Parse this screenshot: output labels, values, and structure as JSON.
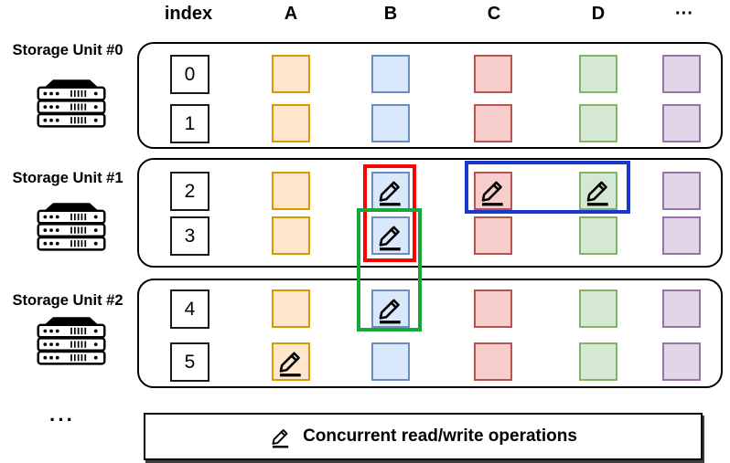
{
  "header": {
    "index": "index",
    "columns": [
      "A",
      "B",
      "C",
      "D",
      "···"
    ]
  },
  "columns": [
    {
      "label": "A",
      "fill": "#ffe6cc",
      "border": "#d79b00"
    },
    {
      "label": "B",
      "fill": "#dae8fc",
      "border": "#6c8ebf"
    },
    {
      "label": "C",
      "fill": "#f8cecc",
      "border": "#b85450"
    },
    {
      "label": "D",
      "fill": "#d5e8d4",
      "border": "#82b366"
    },
    {
      "label": "···",
      "fill": "#e1d5e7",
      "border": "#9673a6"
    }
  ],
  "units": [
    {
      "label": "Storage Unit #0",
      "icon": "server-rack-icon",
      "rows": [
        {
          "index": "0",
          "pencil_cells": []
        },
        {
          "index": "1",
          "pencil_cells": []
        }
      ]
    },
    {
      "label": "Storage Unit #1",
      "icon": "server-rack-icon",
      "rows": [
        {
          "index": "2",
          "pencil_cells": [
            "B",
            "C",
            "D"
          ]
        },
        {
          "index": "3",
          "pencil_cells": [
            "B"
          ]
        }
      ]
    },
    {
      "label": "Storage Unit #2",
      "icon": "server-rack-icon",
      "rows": [
        {
          "index": "4",
          "pencil_cells": [
            "B"
          ]
        },
        {
          "index": "5",
          "pencil_cells": [
            "A"
          ]
        }
      ]
    }
  ],
  "highlights": [
    {
      "name": "red-group",
      "color": "#ff0000",
      "cells": [
        "B2",
        "B3"
      ]
    },
    {
      "name": "green-group",
      "color": "#18a53a",
      "cells": [
        "B3",
        "B4"
      ]
    },
    {
      "name": "blue-group",
      "color": "#1c36d0",
      "cells": [
        "C2",
        "D2"
      ]
    }
  ],
  "legend": {
    "icon": "pencil-icon",
    "label": "Concurrent read/write operations"
  },
  "more_units_ellipsis": "···"
}
